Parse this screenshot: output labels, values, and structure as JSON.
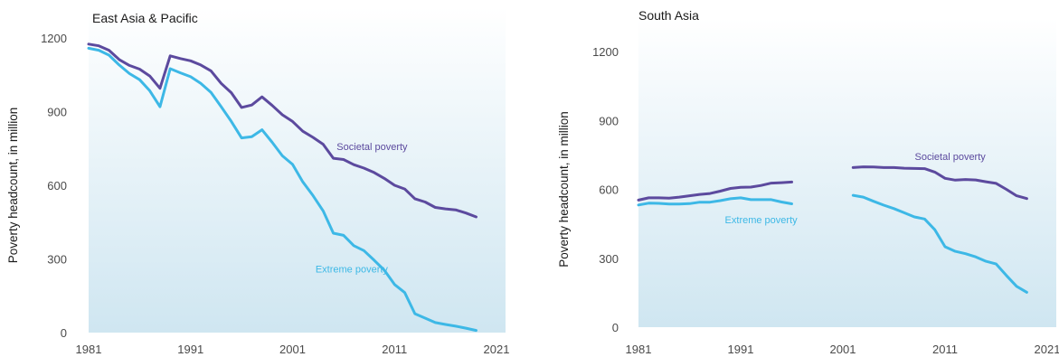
{
  "colors": {
    "societal": "#5c4a9e",
    "extreme": "#3db8e6",
    "plot_bg_top": "#ffffff",
    "plot_bg_bottom": "#cfe6f1"
  },
  "chart_data": [
    {
      "type": "line",
      "title": "East Asia & Pacific",
      "ylabel": "Poverty headcount, in million",
      "xlabel": "",
      "xlim": [
        1981,
        2021
      ],
      "ylim": [
        0,
        1200
      ],
      "xticks": [
        "1981",
        "1991",
        "2001",
        "2011",
        "2021"
      ],
      "yticks": [
        "0",
        "300",
        "600",
        "900",
        "1200"
      ],
      "grid": false,
      "series": [
        {
          "name": "Societal poverty",
          "key": "societal",
          "x": [
            1981,
            1982,
            1983,
            1984,
            1985,
            1986,
            1987,
            1988,
            1989,
            1990,
            1991,
            1992,
            1993,
            1994,
            1995,
            1996,
            1997,
            1998,
            1999,
            2000,
            2001,
            2002,
            2003,
            2004,
            2005,
            2006,
            2007,
            2008,
            2009,
            2010,
            2011,
            2012,
            2013,
            2014,
            2015,
            2016,
            2017,
            2018,
            2019
          ],
          "y": [
            1175,
            1168,
            1150,
            1112,
            1088,
            1073,
            1045,
            995,
            1127,
            1116,
            1107,
            1090,
            1066,
            1015,
            977,
            917,
            927,
            960,
            925,
            887,
            860,
            820,
            795,
            767,
            710,
            705,
            684,
            670,
            652,
            628,
            600,
            585,
            545,
            532,
            510,
            504,
            500,
            487,
            471
          ]
        },
        {
          "name": "Extreme poverty",
          "key": "extreme",
          "x": [
            1981,
            1982,
            1983,
            1984,
            1985,
            1986,
            1987,
            1988,
            1989,
            1990,
            1991,
            1992,
            1993,
            1994,
            1995,
            1996,
            1997,
            1998,
            1999,
            2000,
            2001,
            2002,
            2003,
            2004,
            2005,
            2006,
            2007,
            2008,
            2009,
            2010,
            2011,
            2012,
            2013,
            2014,
            2015,
            2016,
            2017,
            2018,
            2019
          ],
          "y": [
            1158,
            1150,
            1130,
            1090,
            1055,
            1030,
            985,
            920,
            1075,
            1058,
            1042,
            1015,
            978,
            920,
            860,
            793,
            798,
            826,
            775,
            720,
            685,
            614,
            558,
            496,
            405,
            396,
            354,
            334,
            295,
            254,
            196,
            163,
            77,
            59,
            41,
            33,
            26,
            18,
            9
          ]
        }
      ],
      "annotations": [
        {
          "text": "Societal poverty",
          "series": "societal",
          "x": 2008.8,
          "y": 744
        },
        {
          "text": "Extreme poverty",
          "series": "extreme",
          "x": 2006.8,
          "y": 245
        }
      ]
    },
    {
      "type": "line",
      "title": "South Asia",
      "ylabel": "Poverty headcount, in million",
      "xlabel": "",
      "xlim": [
        1981,
        2021
      ],
      "ylim": [
        0,
        1200
      ],
      "xticks": [
        "1981",
        "1991",
        "2001",
        "2011",
        "2021"
      ],
      "yticks": [
        "0",
        "300",
        "600",
        "900",
        "1200"
      ],
      "grid": false,
      "series": [
        {
          "name": "Societal poverty",
          "key": "societal",
          "segments": [
            {
              "x": [
                1981,
                1982,
                1983,
                1984,
                1985,
                1986,
                1987,
                1988,
                1989,
                1990,
                1991,
                1992,
                1993,
                1994,
                1995,
                1996
              ],
              "y": [
                553,
                563,
                563,
                562,
                566,
                572,
                578,
                582,
                592,
                604,
                609,
                610,
                617,
                627,
                629,
                632
              ]
            },
            {
              "x": [
                2002,
                2003,
                2004,
                2005,
                2006,
                2007,
                2008,
                2009,
                2010,
                2011,
                2012,
                2013,
                2014,
                2015,
                2016,
                2017,
                2018,
                2019
              ],
              "y": [
                695,
                698,
                697,
                695,
                695,
                692,
                691,
                690,
                675,
                648,
                640,
                643,
                641,
                633,
                626,
                600,
                572,
                560
              ]
            }
          ]
        },
        {
          "name": "Extreme poverty",
          "key": "extreme",
          "segments": [
            {
              "x": [
                1981,
                1982,
                1983,
                1984,
                1985,
                1986,
                1987,
                1988,
                1989,
                1990,
                1991,
                1992,
                1993,
                1994,
                1995,
                1996
              ],
              "y": [
                532,
                540,
                539,
                536,
                536,
                538,
                544,
                544,
                551,
                559,
                563,
                555,
                555,
                555,
                545,
                537
              ]
            },
            {
              "x": [
                2002,
                2003,
                2004,
                2005,
                2006,
                2007,
                2008,
                2009,
                2010,
                2011,
                2012,
                2013,
                2014,
                2015,
                2016,
                2017,
                2018,
                2019
              ],
              "y": [
                574,
                566,
                548,
                531,
                516,
                498,
                480,
                471,
                424,
                350,
                330,
                320,
                306,
                287,
                275,
                225,
                178,
                152
              ]
            }
          ]
        }
      ],
      "annotations": [
        {
          "text": "Societal poverty",
          "series": "societal",
          "x": 2011.5,
          "y": 728
        },
        {
          "text": "Extreme poverty",
          "series": "extreme",
          "x": 1993,
          "y": 453
        }
      ]
    }
  ]
}
